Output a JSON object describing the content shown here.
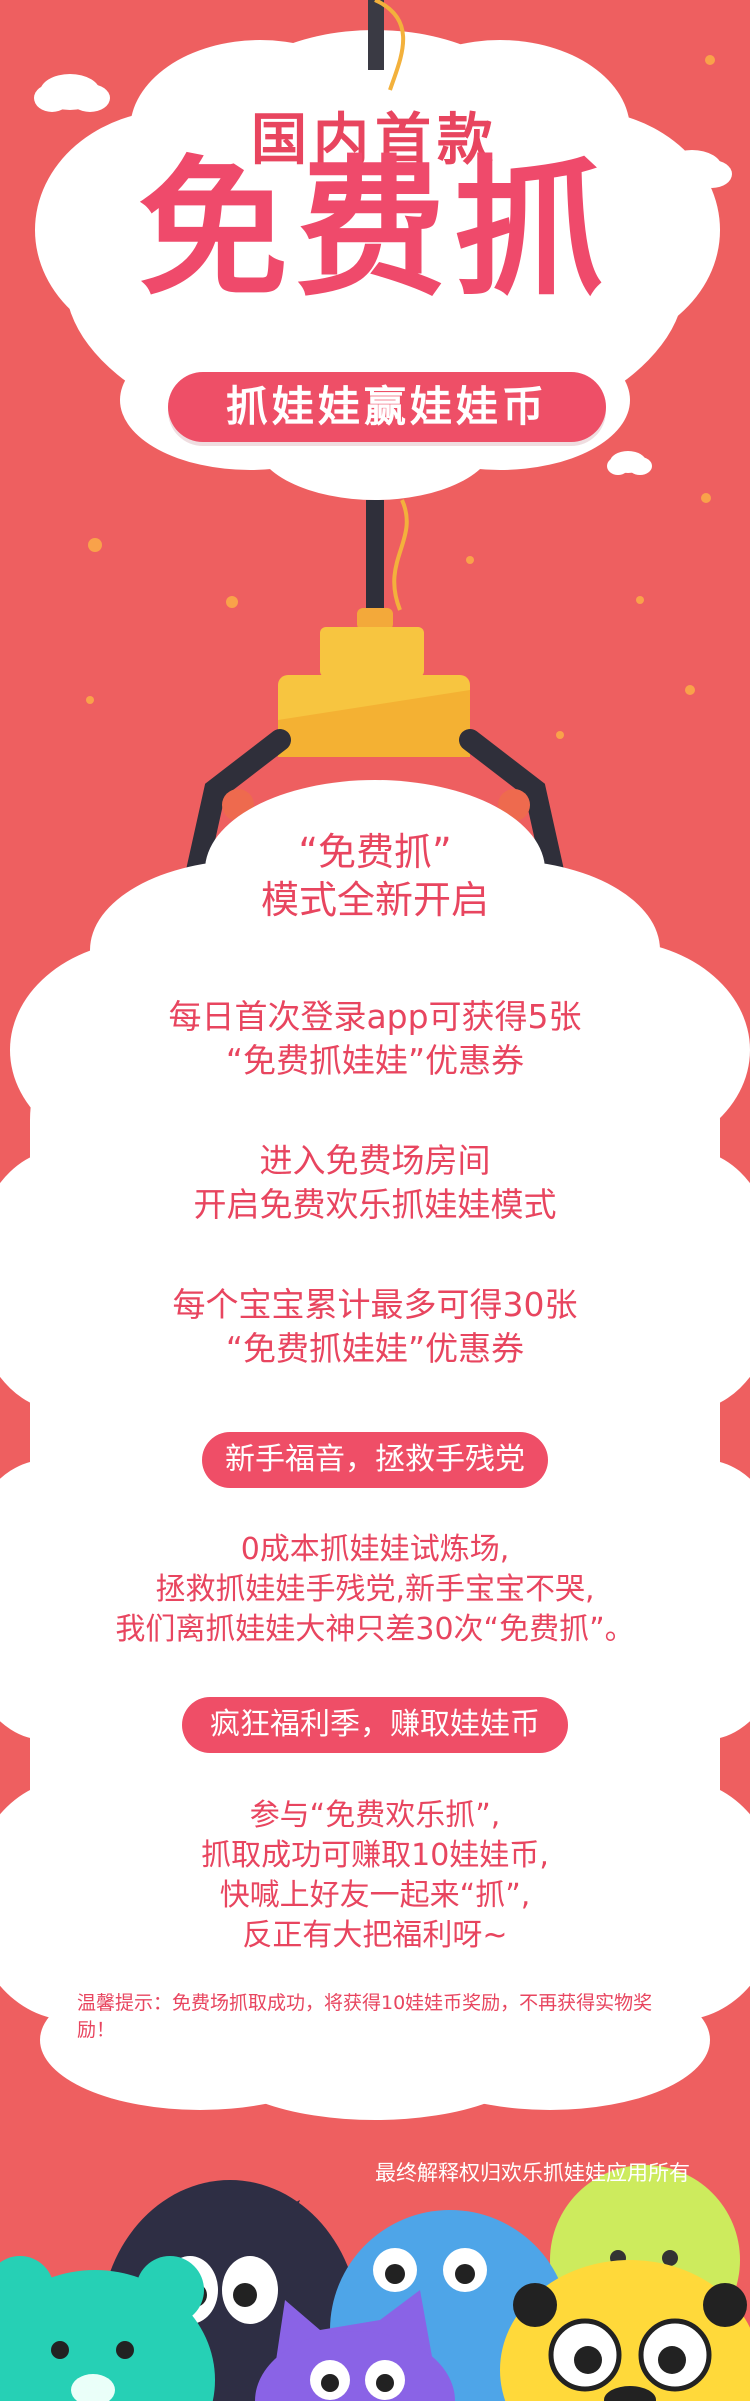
{
  "header": {
    "eyebrow": "国内首款",
    "headline": "免费抓",
    "banner": "抓娃娃赢娃娃币"
  },
  "intro": {
    "line1": "“免费抓”",
    "line2": "模式全新开启"
  },
  "benefits": [
    {
      "line1": "每日首次登录app可获得5张",
      "line2": "“免费抓娃娃”优惠券"
    },
    {
      "line1": "进入免费场房间",
      "line2": "开启免费欢乐抓娃娃模式"
    },
    {
      "line1": "每个宝宝累计最多可得30张",
      "line2": "“免费抓娃娃”优惠券"
    }
  ],
  "section_newbie": {
    "pill": "新手福音，拯救手残党",
    "line1": "0成本抓娃娃试炼场,",
    "line2": "拯救抓娃娃手残党,新手宝宝不哭,",
    "line3": "我们离抓娃娃大神只差30次“免费抓”。"
  },
  "section_welfare": {
    "pill": "疯狂福利季，赚取娃娃币",
    "line1": "参与“免费欢乐抓”,",
    "line2": "抓取成功可赚取10娃娃币,",
    "line3": "快喊上好友一起来“抓”,",
    "line4": "反正有大把福利呀~"
  },
  "tip": "温馨提示：免费场抓取成功，将获得10娃娃币奖励，不再获得实物奖励！",
  "footer": "最终解释权归欢乐抓娃娃应用所有",
  "colors": {
    "background": "#ee5f60",
    "accent": "#e8455f",
    "cloud": "#ffffff",
    "claw_gold": "#f7c540"
  }
}
